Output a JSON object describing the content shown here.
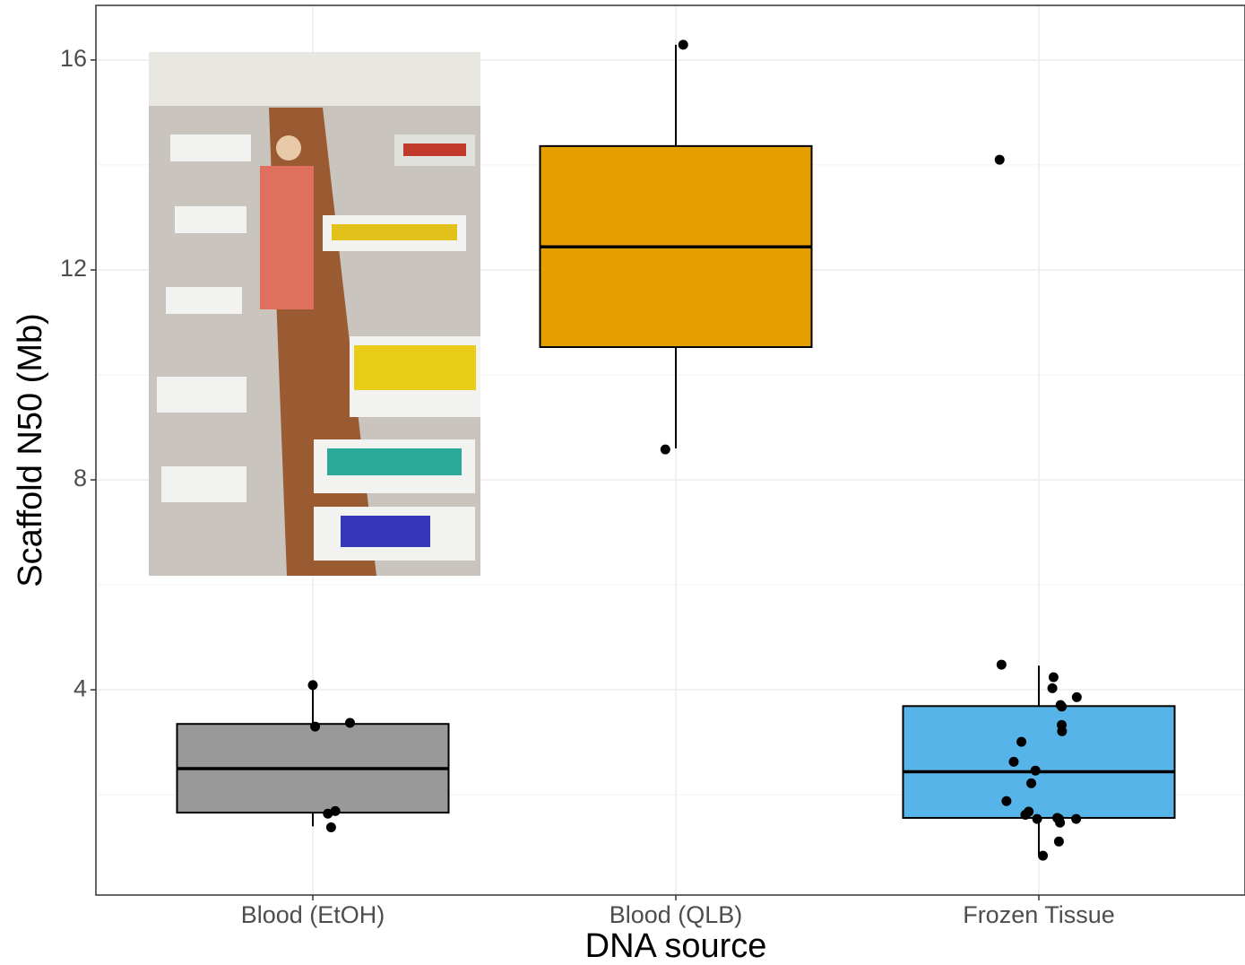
{
  "chart_data": {
    "type": "boxplot",
    "x_label": "DNA source",
    "y_label": "Scaffold N50 (Mb)",
    "categories": [
      "Blood (EtOH)",
      "Blood (QLB)",
      "Frozen Tissue"
    ],
    "boxes": [
      {
        "color": "#999999",
        "min": 1.4,
        "q1": 1.66,
        "median": 2.5,
        "q3": 3.35,
        "max": 4.09,
        "points": [
          4.09,
          3.37,
          3.3,
          1.69,
          1.64,
          1.38
        ]
      },
      {
        "color": "#E69F00",
        "min": 8.6,
        "q1": 10.53,
        "median": 12.44,
        "q3": 14.36,
        "max": 16.29,
        "points": [
          16.29,
          8.58
        ]
      },
      {
        "color": "#56B4E9",
        "min": 0.85,
        "q1": 1.56,
        "median": 2.44,
        "q3": 3.69,
        "max": 4.46,
        "points": [
          14.1,
          4.48,
          4.24,
          4.03,
          3.86,
          3.71,
          3.68,
          3.33,
          3.21,
          3.01,
          2.63,
          2.46,
          2.22,
          1.88,
          1.68,
          1.62,
          1.54,
          1.56,
          1.54,
          1.54,
          1.47,
          1.11,
          0.84
        ]
      }
    ],
    "ylim": [
      0.09,
      17.04
    ],
    "yticks": [
      4,
      8,
      12,
      16
    ],
    "minor_grid": [
      2,
      6,
      10,
      14
    ],
    "grid": true
  }
}
